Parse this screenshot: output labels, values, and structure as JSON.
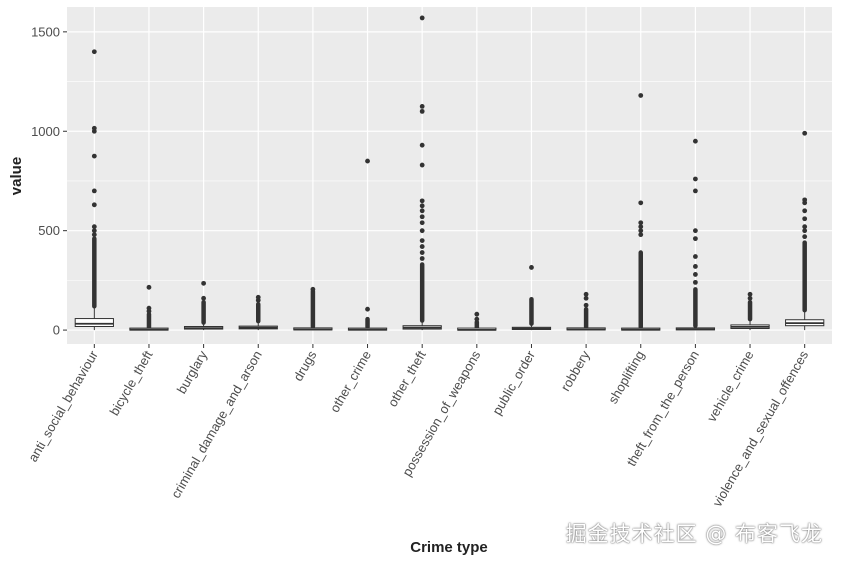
{
  "chart_data": {
    "type": "boxplot",
    "xlabel": "Crime type",
    "ylabel": "value",
    "ylim": [
      -70,
      1625
    ],
    "yticks": [
      0,
      500,
      1000,
      1500
    ],
    "categories": [
      "anti_social_behaviour",
      "bicycle_theft",
      "burglary",
      "criminal_damage_and_arson",
      "drugs",
      "other_crime",
      "other_theft",
      "possession_of_weapons",
      "public_order",
      "robbery",
      "shoplifting",
      "theft_from_the_person",
      "vehicle_crime",
      "violence_and_sexual_offences"
    ],
    "boxes": [
      {
        "q1": 18,
        "median": 32,
        "q3": 58,
        "whisker_low": 0,
        "whisker_high": 115,
        "outliers_dense_from": 120,
        "outliers_dense_to": 460,
        "outliers": [
          480,
          500,
          520,
          630,
          700,
          875,
          1000,
          1015,
          1400
        ]
      },
      {
        "q1": 0,
        "median": 2,
        "q3": 5,
        "whisker_low": 0,
        "whisker_high": 12,
        "outliers_dense_from": 14,
        "outliers_dense_to": 80,
        "outliers": [
          95,
          110,
          215
        ]
      },
      {
        "q1": 5,
        "median": 10,
        "q3": 18,
        "whisker_low": 0,
        "whisker_high": 35,
        "outliers_dense_from": 38,
        "outliers_dense_to": 140,
        "outliers": [
          160,
          235
        ]
      },
      {
        "q1": 6,
        "median": 12,
        "q3": 20,
        "whisker_low": 0,
        "whisker_high": 40,
        "outliers_dense_from": 45,
        "outliers_dense_to": 130,
        "outliers": [
          150,
          165
        ]
      },
      {
        "q1": 1,
        "median": 3,
        "q3": 7,
        "whisker_low": 0,
        "whisker_high": 16,
        "outliers_dense_from": 18,
        "outliers_dense_to": 195,
        "outliers": [
          205
        ]
      },
      {
        "q1": 0,
        "median": 2,
        "q3": 6,
        "whisker_low": 0,
        "whisker_high": 14,
        "outliers_dense_from": 16,
        "outliers_dense_to": 55,
        "outliers": [
          105,
          850
        ]
      },
      {
        "q1": 5,
        "median": 12,
        "q3": 22,
        "whisker_low": 0,
        "whisker_high": 45,
        "outliers_dense_from": 48,
        "outliers_dense_to": 330,
        "outliers": [
          360,
          390,
          420,
          450,
          500,
          540,
          570,
          600,
          625,
          650,
          830,
          930,
          1100,
          1125,
          1570
        ]
      },
      {
        "q1": 0,
        "median": 1,
        "q3": 3,
        "whisker_low": 0,
        "whisker_high": 7,
        "outliers_dense_from": 9,
        "outliers_dense_to": 40,
        "outliers": [
          55,
          80
        ]
      },
      {
        "q1": 3,
        "median": 8,
        "q3": 14,
        "whisker_low": 0,
        "whisker_high": 30,
        "outliers_dense_from": 32,
        "outliers_dense_to": 155,
        "outliers": [
          315
        ]
      },
      {
        "q1": 1,
        "median": 3,
        "q3": 6,
        "whisker_low": 0,
        "whisker_high": 14,
        "outliers_dense_from": 16,
        "outliers_dense_to": 105,
        "outliers": [
          125,
          160,
          180
        ]
      },
      {
        "q1": 0,
        "median": 2,
        "q3": 6,
        "whisker_low": 0,
        "whisker_high": 14,
        "outliers_dense_from": 16,
        "outliers_dense_to": 390,
        "outliers": [
          480,
          500,
          520,
          540,
          640,
          1180
        ]
      },
      {
        "q1": 1,
        "median": 4,
        "q3": 9,
        "whisker_low": 0,
        "whisker_high": 20,
        "outliers_dense_from": 22,
        "outliers_dense_to": 205,
        "outliers": [
          240,
          280,
          320,
          370,
          460,
          500,
          700,
          760,
          950
        ]
      },
      {
        "q1": 8,
        "median": 16,
        "q3": 26,
        "whisker_low": 0,
        "whisker_high": 50,
        "outliers_dense_from": 55,
        "outliers_dense_to": 140,
        "outliers": [
          160,
          180
        ]
      },
      {
        "q1": 22,
        "median": 35,
        "q3": 52,
        "whisker_low": 0,
        "whisker_high": 95,
        "outliers_dense_from": 100,
        "outliers_dense_to": 440,
        "outliers": [
          470,
          500,
          520,
          560,
          600,
          640,
          655,
          990
        ]
      }
    ],
    "grid": true,
    "legend": "none",
    "colors": {
      "panel": "#ebebeb",
      "grid": "#ffffff",
      "box": "#333333",
      "outlier": "#333333"
    }
  },
  "watermark": "掘金技术社区 @ 布客飞龙"
}
